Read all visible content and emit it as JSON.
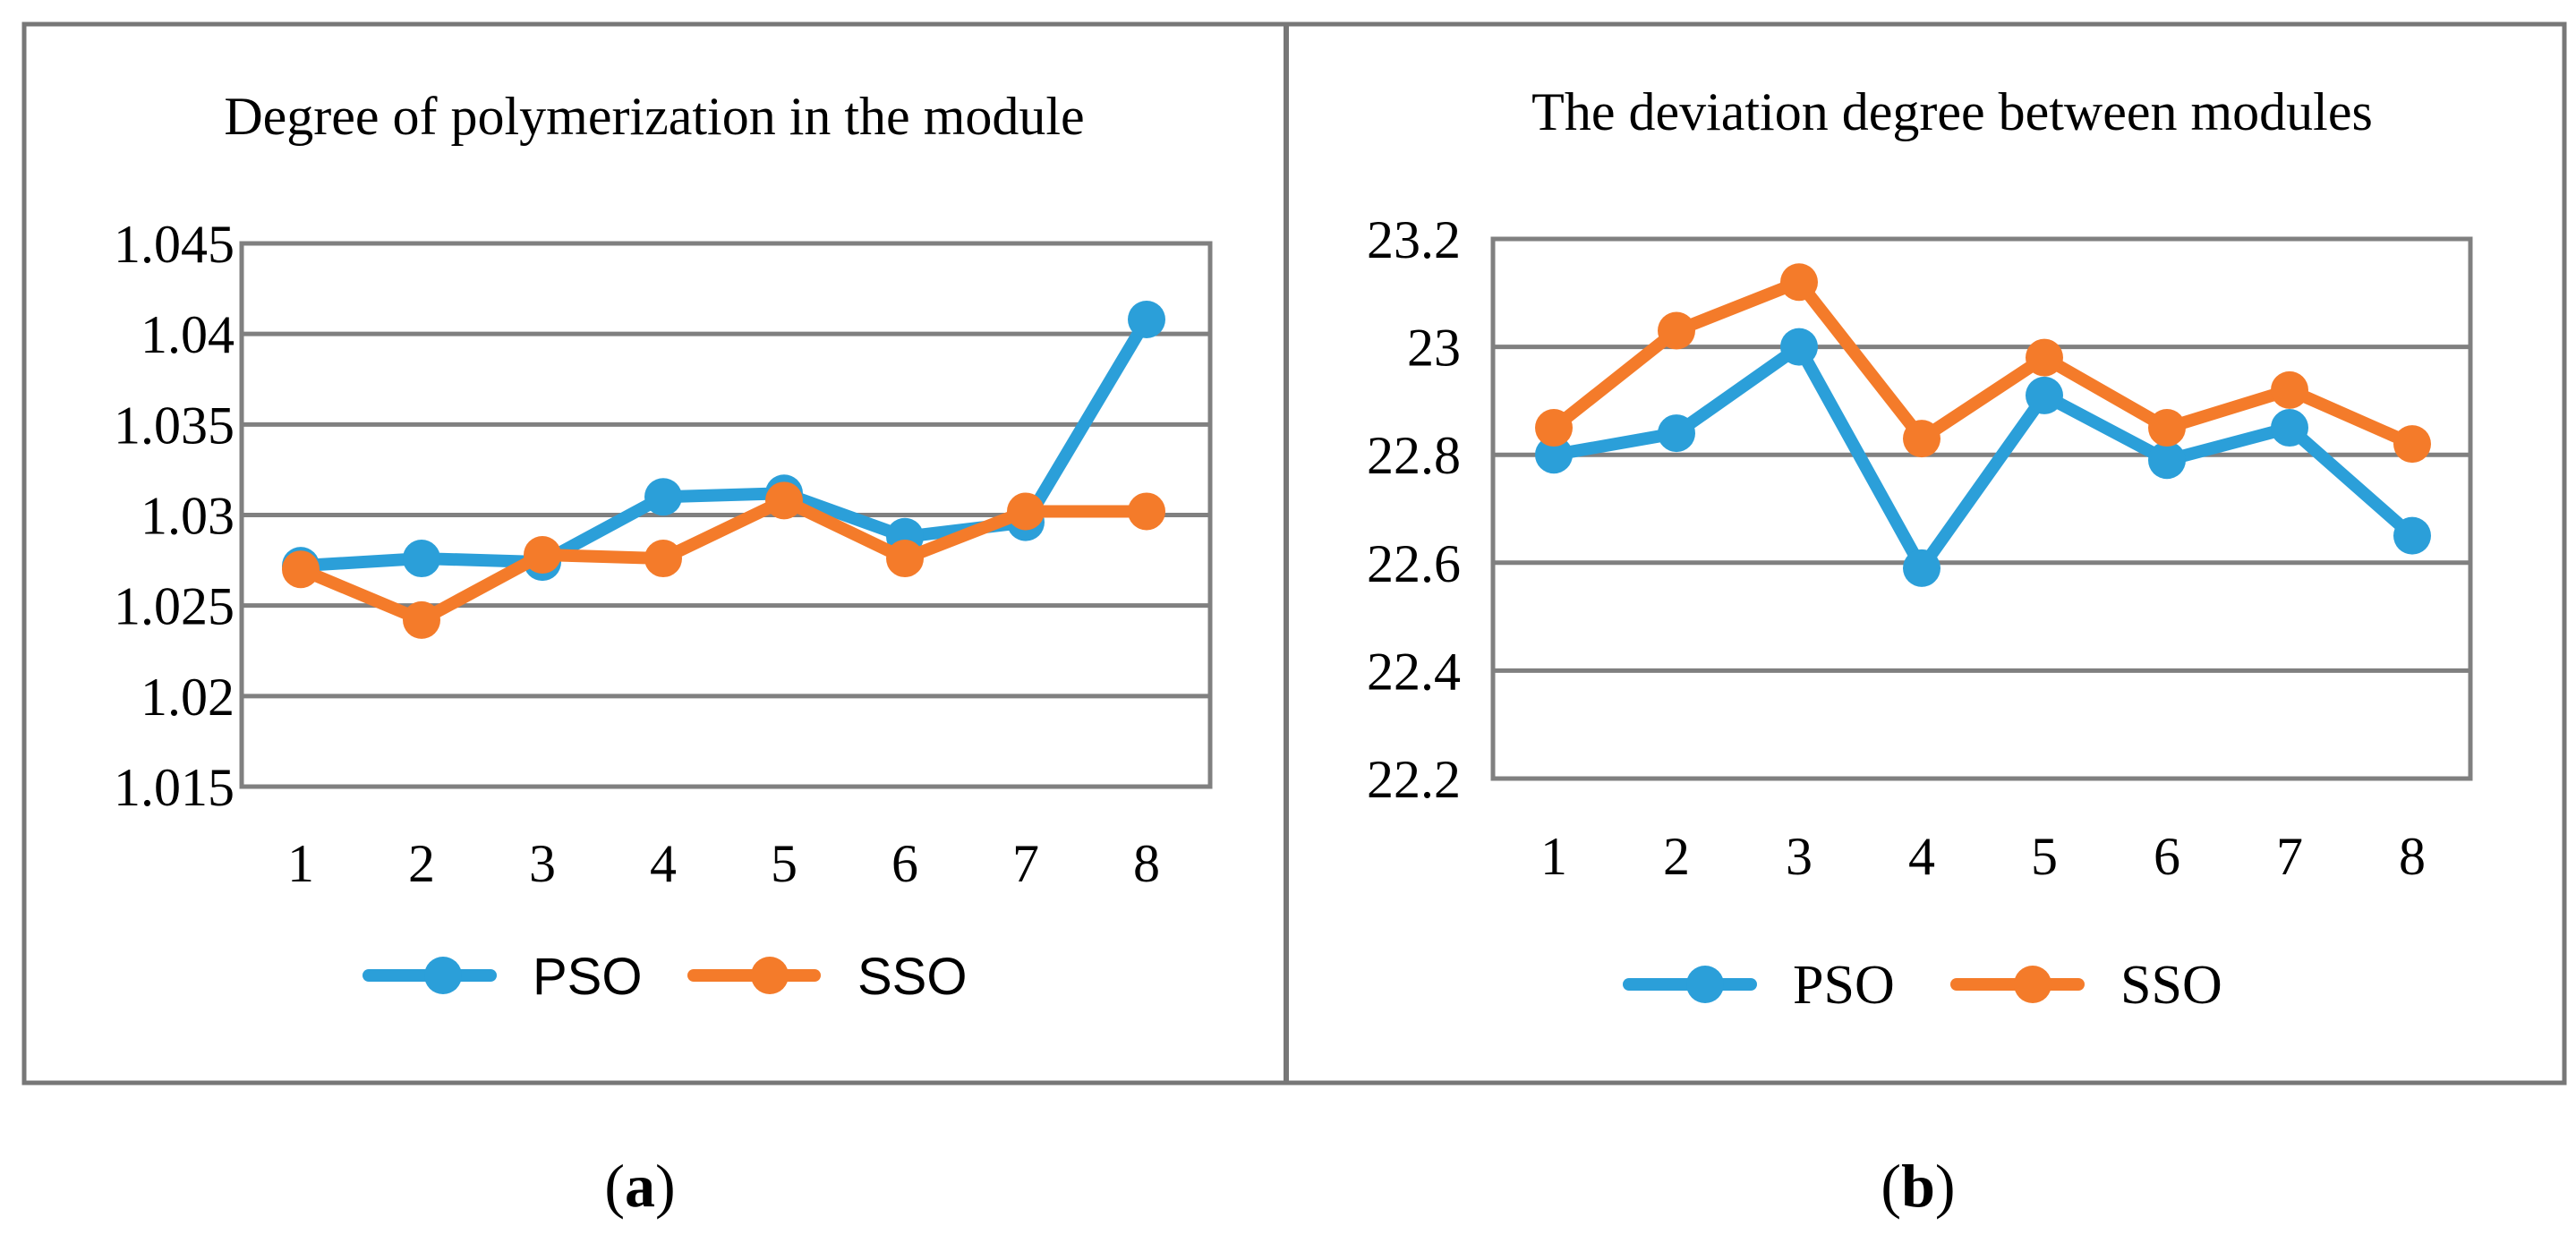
{
  "colors": {
    "pso": "#2b9fd9",
    "sso": "#f47b2a",
    "grid": "#808080",
    "frame": "#777777"
  },
  "chart_data": [
    {
      "type": "line",
      "title": "Degree of polymerization in the module",
      "xlabel": "",
      "ylabel": "",
      "categories": [
        "1",
        "2",
        "3",
        "4",
        "5",
        "6",
        "7",
        "8"
      ],
      "ylim": [
        1.015,
        1.045
      ],
      "ytick_values": [
        1.015,
        1.02,
        1.025,
        1.03,
        1.035,
        1.04,
        1.045
      ],
      "ytick_labels": [
        "1.015",
        "1.02",
        "1.025",
        "1.03",
        "1.035",
        "1.04",
        "1.045"
      ],
      "grid": true,
      "legend_position": "bottom",
      "legend_font": "sans",
      "series": [
        {
          "name": "PSO",
          "color": "#2b9fd9",
          "values": [
            1.0272,
            1.0276,
            1.0274,
            1.031,
            1.0312,
            1.0288,
            1.0296,
            1.0408
          ]
        },
        {
          "name": "SSO",
          "color": "#f47b2a",
          "values": [
            1.027,
            1.0242,
            1.0278,
            1.0276,
            1.0308,
            1.0276,
            1.0302,
            1.0302
          ]
        }
      ],
      "caption": {
        "open": "(",
        "letter": "a",
        "close": ")"
      }
    },
    {
      "type": "line",
      "title": "The deviation degree between modules",
      "xlabel": "",
      "ylabel": "",
      "categories": [
        "1",
        "2",
        "3",
        "4",
        "5",
        "6",
        "7",
        "8"
      ],
      "ylim": [
        22.2,
        23.2
      ],
      "ytick_values": [
        22.2,
        22.4,
        22.6,
        22.8,
        23.0,
        23.2
      ],
      "ytick_labels": [
        "22.2",
        "22.4",
        "22.6",
        "22.8",
        "23",
        "23.2"
      ],
      "grid": true,
      "legend_position": "bottom",
      "legend_font": "serif",
      "series": [
        {
          "name": "PSO",
          "color": "#2b9fd9",
          "values": [
            22.8,
            22.84,
            23.0,
            22.59,
            22.91,
            22.79,
            22.85,
            22.65
          ]
        },
        {
          "name": "SSO",
          "color": "#f47b2a",
          "values": [
            22.85,
            23.03,
            23.12,
            22.83,
            22.98,
            22.85,
            22.92,
            22.82
          ]
        }
      ],
      "caption": {
        "open": "(",
        "letter": "b",
        "close": ")"
      }
    }
  ]
}
